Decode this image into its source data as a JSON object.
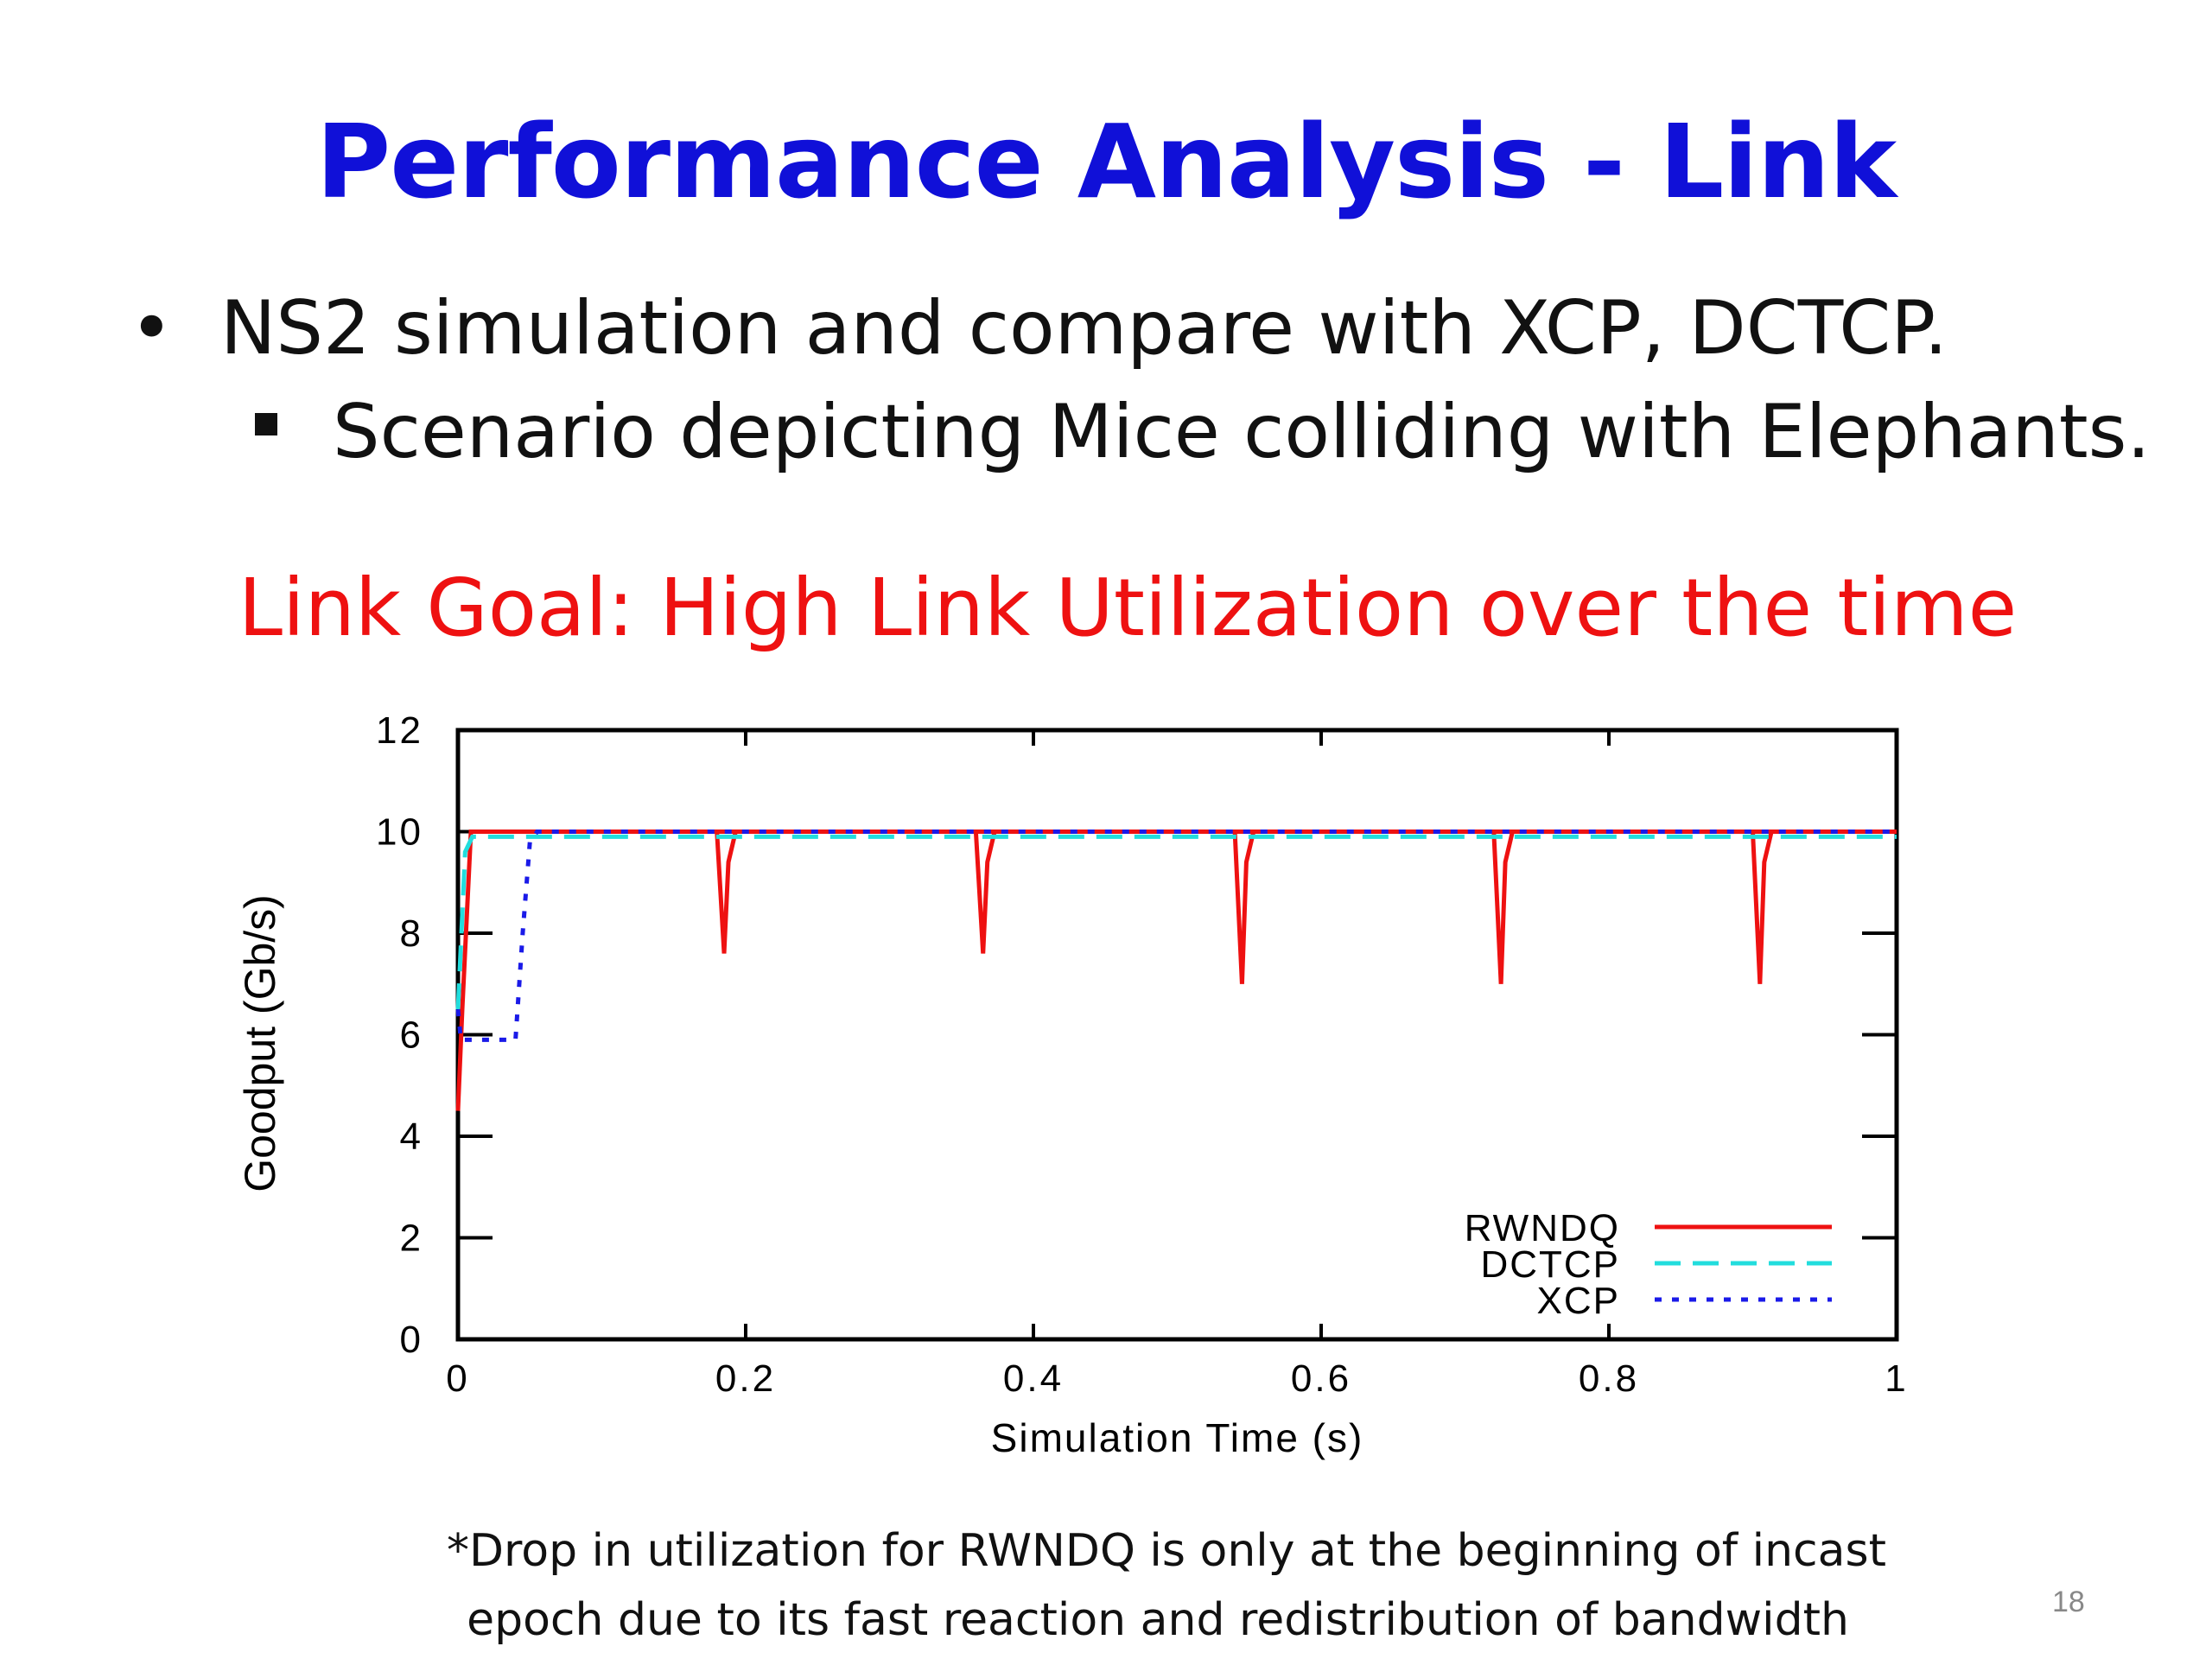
{
  "slide": {
    "title": "Performance Analysis - Link",
    "bullets": [
      {
        "marker": "•",
        "text": "NS2 simulation and compare with XCP, DCTCP."
      },
      {
        "marker": "▪",
        "text": "Scenario depicting Mice colliding with Elephants."
      }
    ],
    "goal": "Link Goal: High Link Utilization over the time",
    "footnote_line1": "*Drop in utilization for RWNDQ is only at the beginning of incast",
    "footnote_line2": "epoch due to its fast reaction and redistribution of bandwidth",
    "slide_number": "18"
  },
  "chart_data": {
    "type": "line",
    "title": "",
    "xlabel": "Simulation Time (s)",
    "ylabel": "Goodput (Gb/s)",
    "xlim": [
      0,
      1
    ],
    "ylim": [
      0,
      12
    ],
    "xticks": [
      "0",
      "0.2",
      "0.4",
      "0.6",
      "0.8",
      "1"
    ],
    "yticks": [
      "0",
      "2",
      "4",
      "6",
      "8",
      "10",
      "12"
    ],
    "grid": false,
    "legend_position": "bottom-right",
    "series": [
      {
        "name": "RWNDQ",
        "color": "#ee1111",
        "dash": "solid",
        "x": [
          0,
          0.003,
          0.009,
          1,
          0.18,
          0.185,
          0.188,
          0.193,
          0.36,
          0.365,
          0.368,
          0.373,
          0.54,
          0.545,
          0.548,
          0.553,
          0.72,
          0.725,
          0.728,
          0.733,
          0.9,
          0.905,
          0.908,
          0.913
        ],
        "y": [
          4.5,
          6.5,
          10,
          10,
          10,
          7.6,
          9.4,
          10,
          10,
          7.6,
          9.4,
          10,
          10,
          7.0,
          9.4,
          10,
          10,
          7.0,
          9.4,
          10,
          10,
          7.0,
          9.4,
          10
        ]
      },
      {
        "name": "DCTCP",
        "color": "#22dddd",
        "dash": "long-dash",
        "x": [
          0,
          0.005,
          0.01,
          1
        ],
        "y": [
          6.5,
          9.6,
          9.9,
          9.9
        ]
      },
      {
        "name": "XCP",
        "color": "#1a1ae8",
        "dash": "dotted",
        "x": [
          0,
          0.002,
          0.04,
          0.045,
          0.05,
          0.055,
          1
        ],
        "y": [
          6.5,
          5.9,
          5.9,
          8.0,
          9.8,
          10,
          10
        ]
      }
    ]
  }
}
